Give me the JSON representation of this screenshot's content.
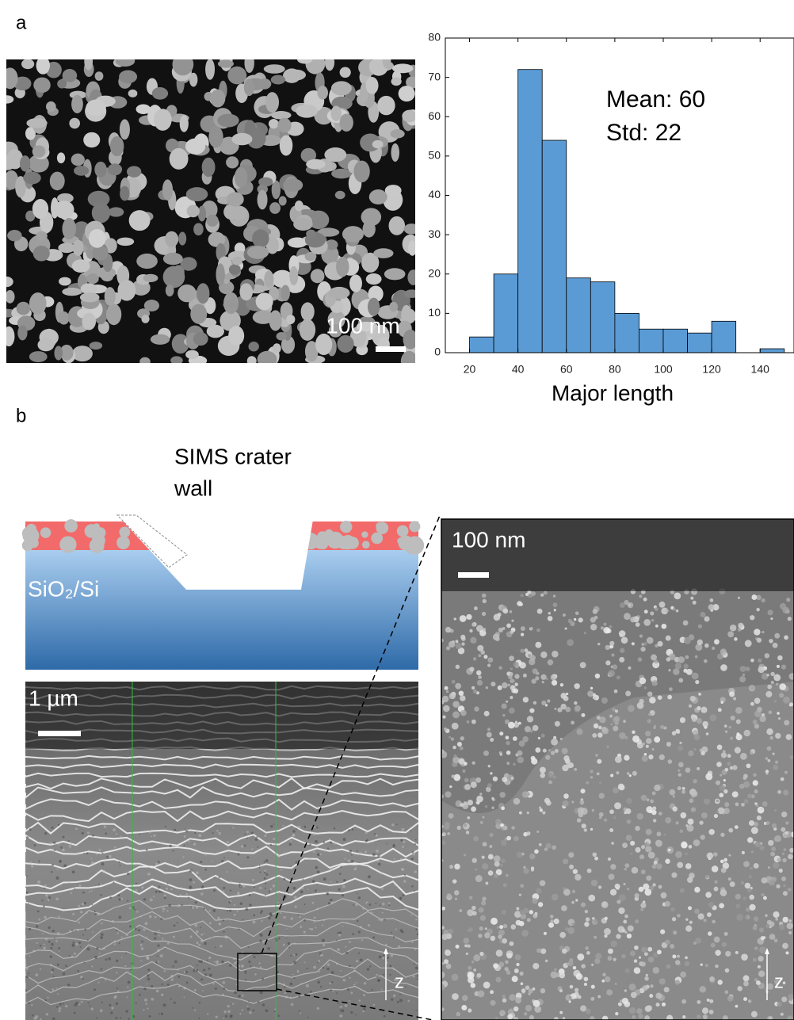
{
  "panels": {
    "a": "a",
    "b": "b"
  },
  "sem_a": {
    "scale_label": "100 nm"
  },
  "chart_data": {
    "type": "histogram",
    "xlabel": "Major length",
    "annotations": [
      "Mean: 60",
      "Std: 22"
    ],
    "bins": [
      20,
      30,
      40,
      50,
      60,
      70,
      80,
      90,
      100,
      110,
      120,
      130,
      140,
      150
    ],
    "values": [
      4,
      20,
      72,
      54,
      19,
      18,
      10,
      6,
      6,
      5,
      8,
      0,
      1
    ],
    "color": "#5b9bd5",
    "xlim": [
      10,
      154
    ],
    "ylim": [
      0,
      80
    ],
    "xticks": [
      20,
      40,
      60,
      80,
      100,
      120,
      140
    ],
    "yticks": [
      0,
      10,
      20,
      30,
      40,
      50,
      60,
      70,
      80
    ]
  },
  "schematic": {
    "label_lines": [
      "SIMS crater",
      "wall"
    ],
    "layer_label": "SiO₂/Si"
  },
  "sem_b_left": {
    "scale_label": "1 µm",
    "axis_label": "z"
  },
  "sem_b_right": {
    "scale_label": "100 nm",
    "axis_label": "z"
  }
}
